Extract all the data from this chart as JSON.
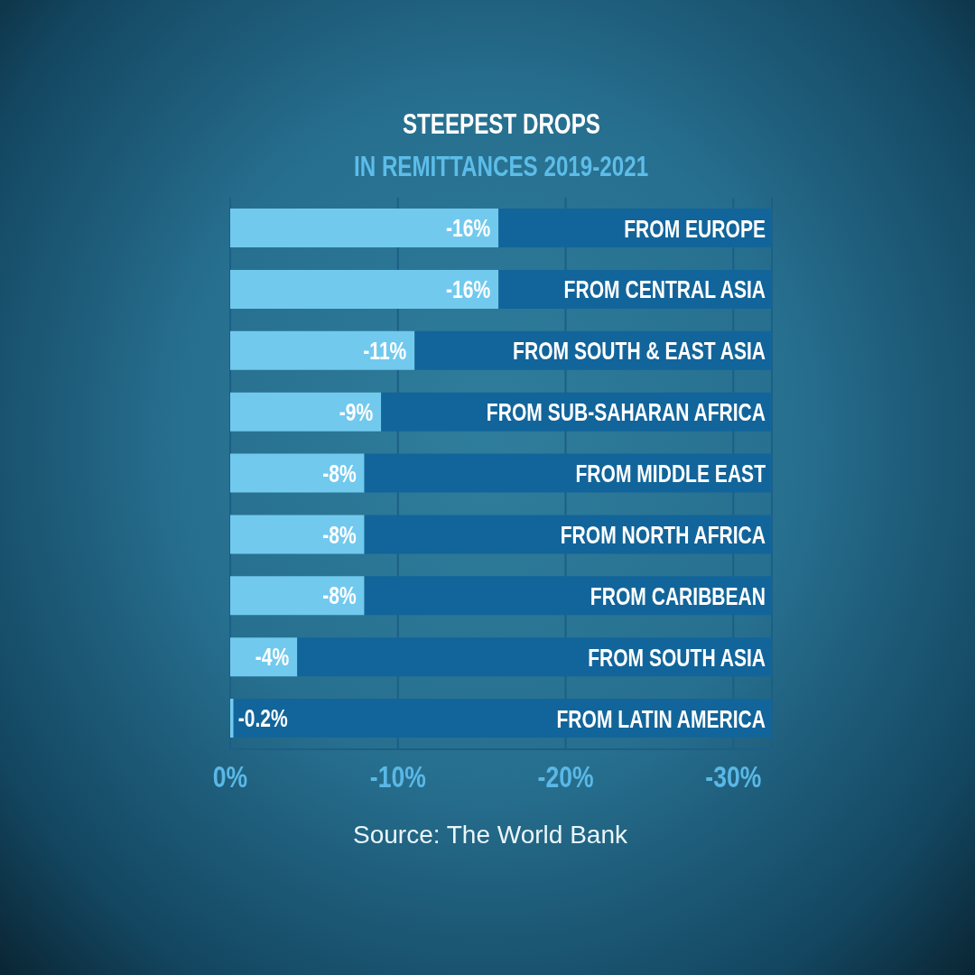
{
  "chart_data": {
    "type": "bar",
    "orientation": "horizontal",
    "stacked": true,
    "title": "STEEPEST DROPS",
    "subtitle": "IN REMITTANCES 2019-2021",
    "categories": [
      "FROM EUROPE",
      "FROM CENTRAL ASIA",
      "FROM SOUTH & EAST ASIA",
      "FROM SUB-SAHARAN AFRICA",
      "FROM MIDDLE EAST",
      "FROM NORTH AFRICA",
      "FROM CARIBBEAN",
      "FROM SOUTH ASIA",
      "FROM LATIN AMERICA"
    ],
    "series": [
      {
        "color": "#72c9ee",
        "values": [
          -16,
          -16,
          -11,
          -9,
          -8,
          -8,
          -8,
          -4,
          -0.2
        ],
        "value_labels": [
          "-16%",
          "-16%",
          "-11%",
          "-9%",
          "-8%",
          "-8%",
          "-8%",
          "-4%",
          "-0.2%"
        ]
      },
      {
        "color": "#12659a",
        "values": [
          -16.3,
          -16.3,
          -21.3,
          -23.3,
          -24.3,
          -24.3,
          -24.3,
          -28.3,
          -32.1
        ]
      }
    ],
    "xlim": [
      0,
      -32.3
    ],
    "xticks": [
      {
        "value": 0,
        "label": "0%"
      },
      {
        "value": -10,
        "label": "-10%"
      },
      {
        "value": -20,
        "label": "-20%"
      },
      {
        "value": -30,
        "label": "-30%"
      }
    ],
    "grid": "x",
    "annotations": [
      "Source: The World Bank"
    ]
  }
}
